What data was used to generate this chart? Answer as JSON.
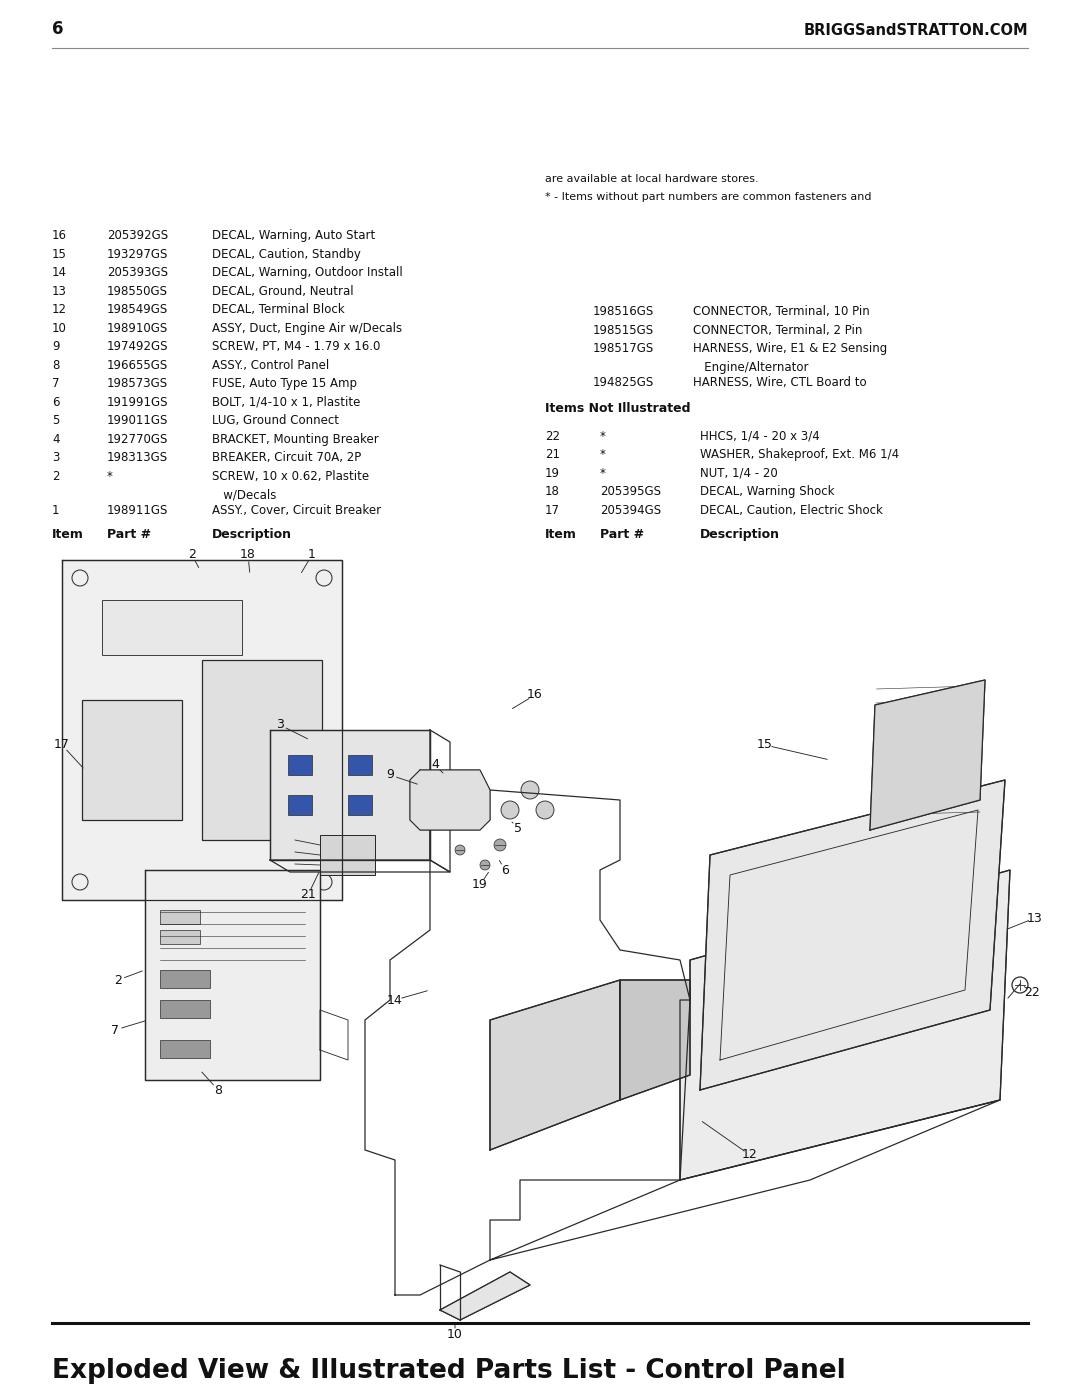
{
  "title": "Exploded View & Illustrated Parts List - Control Panel",
  "page_number": "6",
  "website": "BRIGGSandSTRATTON.COM",
  "background_color": "#ffffff",
  "title_fontsize": 19,
  "title_fontweight": "bold",
  "parts_left": [
    {
      "item": "1",
      "part": "198911GS",
      "desc1": "ASSY., Cover, Circuit Breaker",
      "desc2": "   w/Decals"
    },
    {
      "item": "2",
      "part": "*",
      "desc1": "SCREW, 10 x 0.62, Plastite",
      "desc2": ""
    },
    {
      "item": "3",
      "part": "198313GS",
      "desc1": "BREAKER, Circuit 70A, 2P",
      "desc2": ""
    },
    {
      "item": "4",
      "part": "192770GS",
      "desc1": "BRACKET, Mounting Breaker",
      "desc2": ""
    },
    {
      "item": "5",
      "part": "199011GS",
      "desc1": "LUG, Ground Connect",
      "desc2": ""
    },
    {
      "item": "6",
      "part": "191991GS",
      "desc1": "BOLT, 1/4-10 x 1, Plastite",
      "desc2": ""
    },
    {
      "item": "7",
      "part": "198573GS",
      "desc1": "FUSE, Auto Type 15 Amp",
      "desc2": ""
    },
    {
      "item": "8",
      "part": "196655GS",
      "desc1": "ASSY., Control Panel",
      "desc2": ""
    },
    {
      "item": "9",
      "part": "197492GS",
      "desc1": "SCREW, PT, M4 - 1.79 x 16.0",
      "desc2": ""
    },
    {
      "item": "10",
      "part": "198910GS",
      "desc1": "ASSY, Duct, Engine Air w/Decals",
      "desc2": ""
    },
    {
      "item": "12",
      "part": "198549GS",
      "desc1": "DECAL, Terminal Block",
      "desc2": ""
    },
    {
      "item": "13",
      "part": "198550GS",
      "desc1": "DECAL, Ground, Neutral",
      "desc2": ""
    },
    {
      "item": "14",
      "part": "205393GS",
      "desc1": "DECAL, Warning, Outdoor Install",
      "desc2": ""
    },
    {
      "item": "15",
      "part": "193297GS",
      "desc1": "DECAL, Caution, Standby",
      "desc2": ""
    },
    {
      "item": "16",
      "part": "205392GS",
      "desc1": "DECAL, Warning, Auto Start",
      "desc2": ""
    }
  ],
  "parts_right": [
    {
      "item": "17",
      "part": "205394GS",
      "desc1": "DECAL, Caution, Electric Shock",
      "desc2": ""
    },
    {
      "item": "18",
      "part": "205395GS",
      "desc1": "DECAL, Warning Shock",
      "desc2": ""
    },
    {
      "item": "19",
      "part": "*",
      "desc1": "NUT, 1/4 - 20",
      "desc2": ""
    },
    {
      "item": "21",
      "part": "*",
      "desc1": "WASHER, Shakeproof, Ext. M6 1/4",
      "desc2": ""
    },
    {
      "item": "22",
      "part": "*",
      "desc1": "HHCS, 1/4 - 20 x 3/4",
      "desc2": ""
    }
  ],
  "not_illustrated_header": "Items Not Illustrated",
  "not_illustrated": [
    {
      "part": "194825GS",
      "desc1": "HARNESS, Wire, CTL Board to",
      "desc2": "   Engine/Alternator"
    },
    {
      "part": "198517GS",
      "desc1": "HARNESS, Wire, E1 & E2 Sensing",
      "desc2": ""
    },
    {
      "part": "198515GS",
      "desc1": "CONNECTOR, Terminal, 2 Pin",
      "desc2": ""
    },
    {
      "part": "198516GS",
      "desc1": "CONNECTOR, Terminal, 10 Pin",
      "desc2": ""
    }
  ],
  "footnote1": "* - Items without part numbers are common fasteners and",
  "footnote2": "are available at local hardware stores.",
  "header_fontsize": 9,
  "body_fontsize": 8.5
}
